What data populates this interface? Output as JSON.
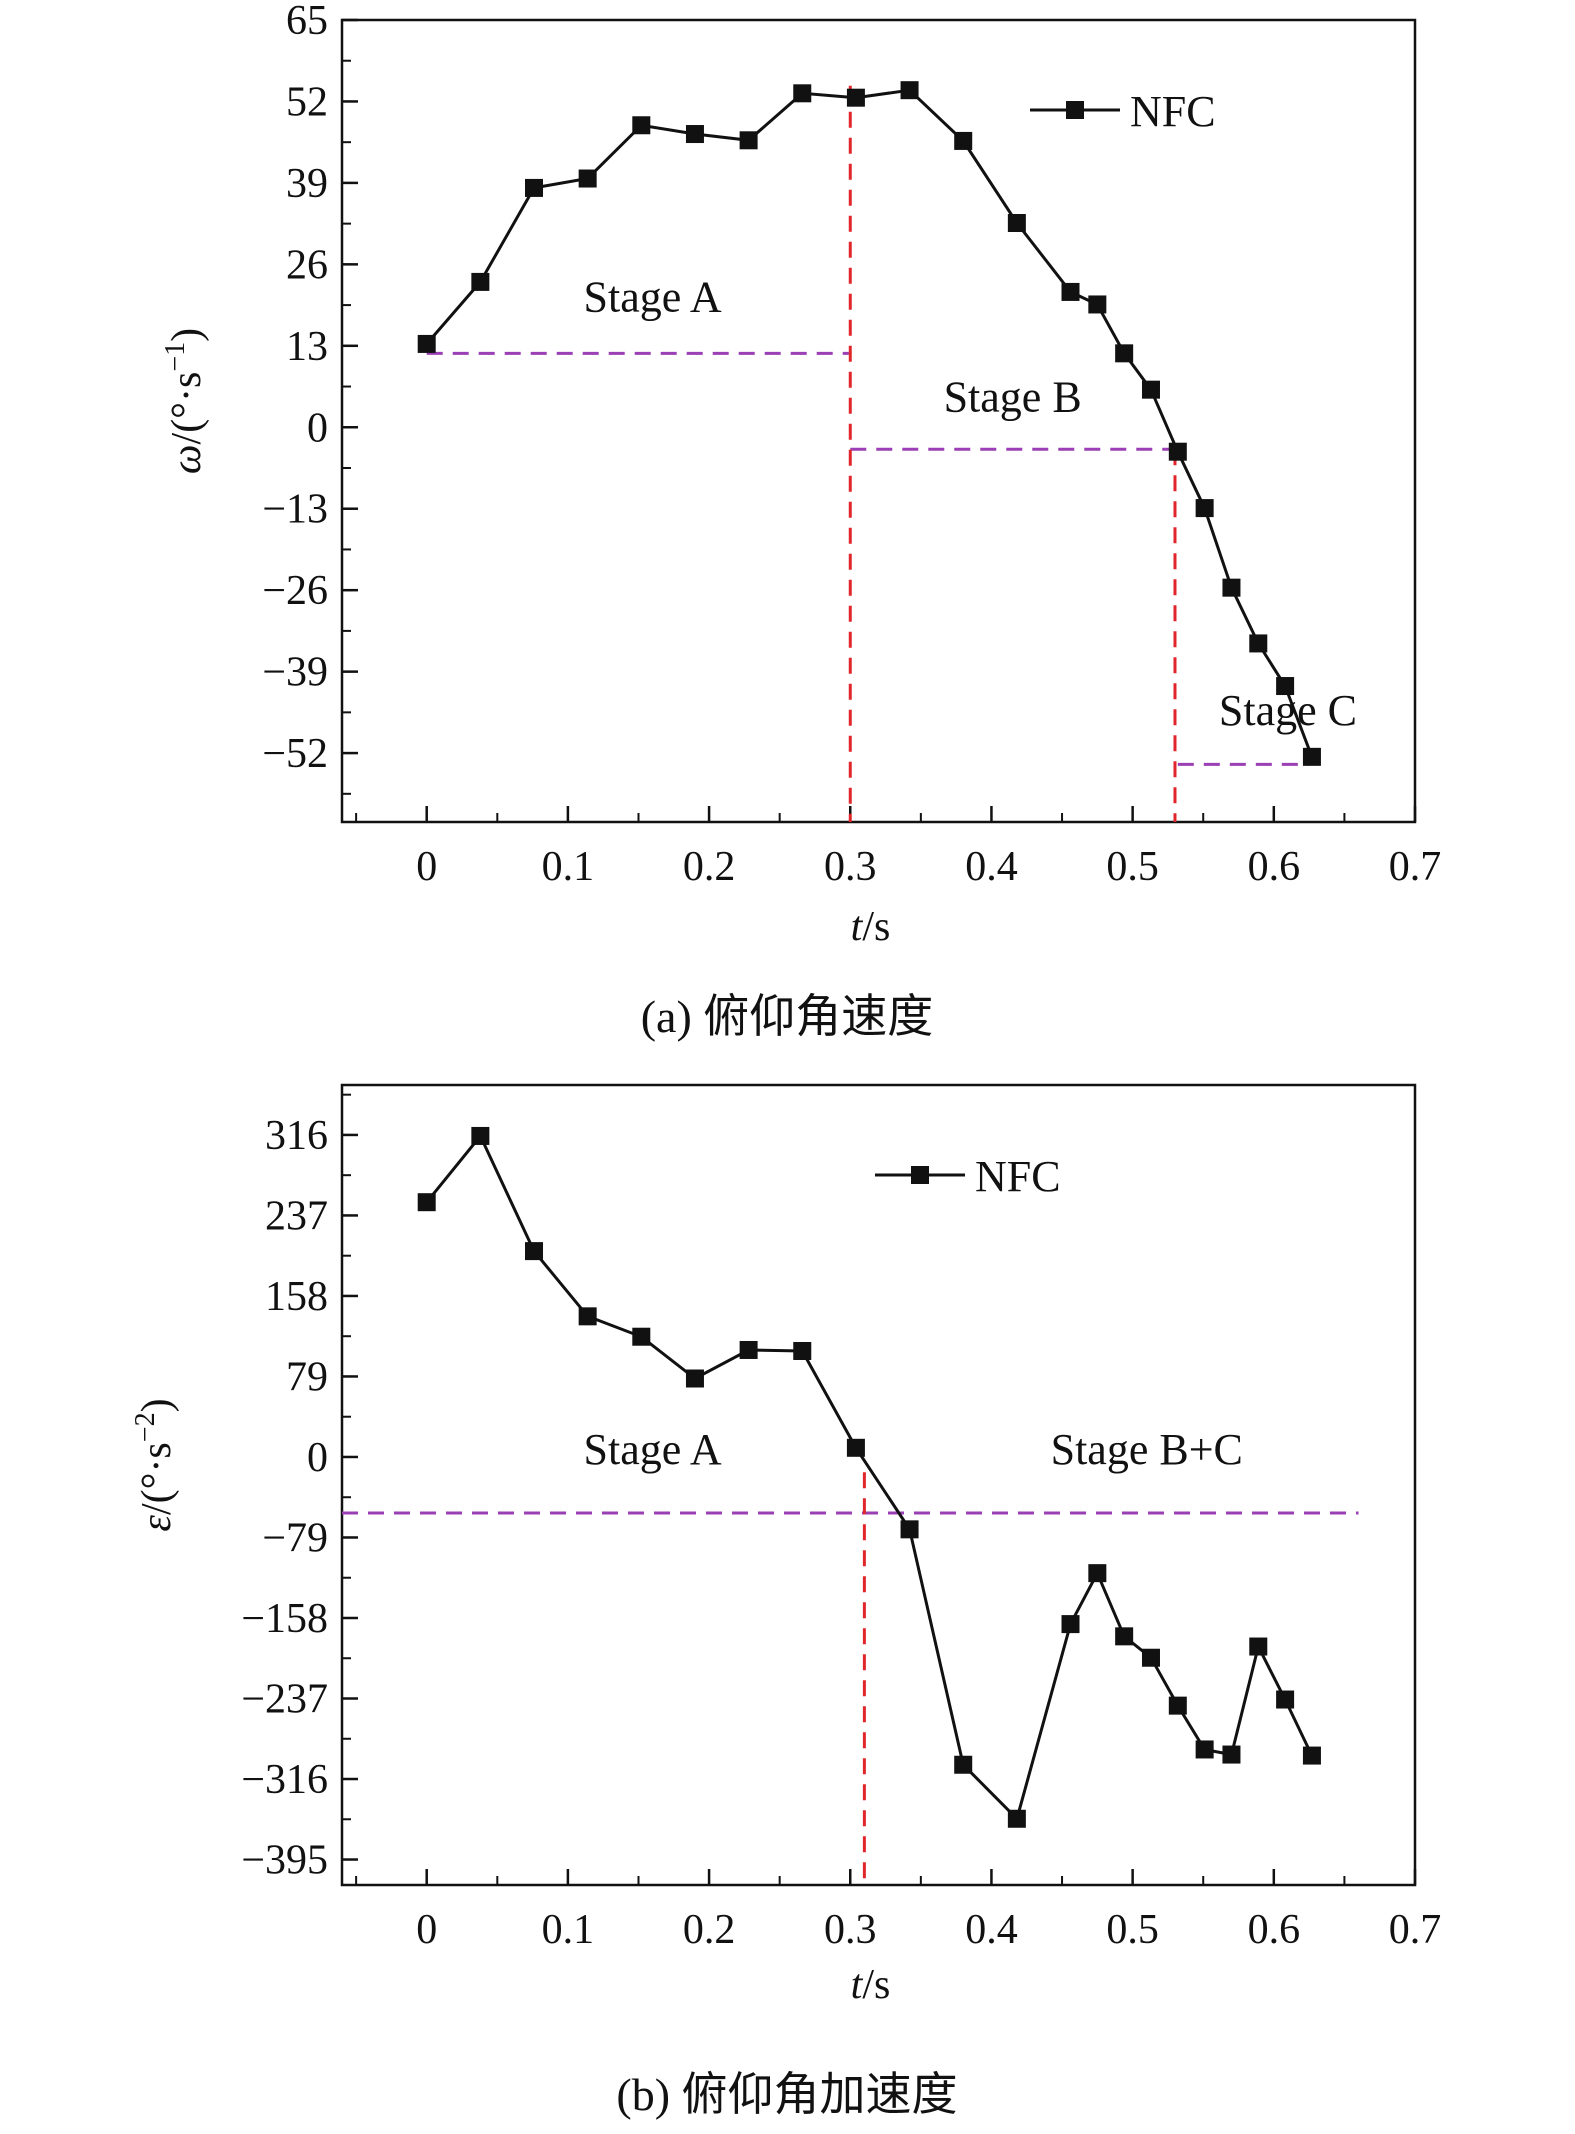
{
  "chart_data": [
    {
      "type": "line",
      "caption": "(a) 俯仰角速度",
      "xlabel_var": "t",
      "xlabel_unit": "/s",
      "ylabel_var": "ω",
      "ylabel_unit": "/(°·s",
      "ylabel_exp": "−1",
      "ylabel_close": ")",
      "xlim": [
        -0.06,
        0.7
      ],
      "ylim": [
        -63,
        65
      ],
      "xticks": [
        0,
        0.1,
        0.2,
        0.3,
        0.4,
        0.5,
        0.6,
        0.7
      ],
      "xtick_labels": [
        "0",
        "0.1",
        "0.2",
        "0.3",
        "0.4",
        "0.5",
        "0.6",
        "0.7"
      ],
      "yticks": [
        65,
        52,
        39,
        26,
        13,
        0,
        -13,
        -26,
        -39,
        -52
      ],
      "ytick_labels": [
        "65",
        "52",
        "39",
        "26",
        "13",
        "0",
        "−13",
        "−26",
        "−39",
        "−52"
      ],
      "legend": [
        "NFC"
      ],
      "series": [
        {
          "name": "NFC",
          "x": [
            0,
            0.038,
            0.076,
            0.114,
            0.152,
            0.19,
            0.228,
            0.266,
            0.304,
            0.342,
            0.38,
            0.418,
            0.456,
            0.475,
            0.494,
            0.513,
            0.532,
            0.551,
            0.57,
            0.589,
            0.608,
            0.627
          ],
          "y": [
            13.3,
            23.2,
            38.2,
            39.7,
            48.2,
            46.8,
            45.8,
            53.3,
            52.6,
            53.8,
            45.7,
            32.6,
            21.6,
            19.6,
            11.8,
            6.0,
            -3.9,
            -12.9,
            -25.6,
            -34.5,
            -41.3,
            -52.6
          ]
        }
      ],
      "annotations": [
        {
          "text": "Stage A",
          "x": 0.16,
          "y": 18.5
        },
        {
          "text": "Stage B",
          "x": 0.415,
          "y": 2.5
        },
        {
          "text": "Stage C",
          "x": 0.61,
          "y": -47.5
        }
      ],
      "purple_segments": [
        {
          "x0": 0.0,
          "x1": 0.299,
          "y": 11.8
        },
        {
          "x0": 0.3,
          "x1": 0.527,
          "y": -3.5
        },
        {
          "x0": 0.532,
          "x1": 0.625,
          "y": -53.8
        }
      ],
      "red_vlines": [
        {
          "x": 0.3,
          "y0": 54.5,
          "y1": -63
        },
        {
          "x": 0.53,
          "y0": -3.5,
          "y1": -63
        }
      ]
    },
    {
      "type": "line",
      "caption": "(b) 俯仰角加速度",
      "xlabel_var": "t",
      "xlabel_unit": "/s",
      "ylabel_var": "ε",
      "ylabel_unit": "/(°·s",
      "ylabel_exp": "−2",
      "ylabel_close": ")",
      "xlim": [
        -0.06,
        0.7
      ],
      "ylim": [
        -420,
        365
      ],
      "xticks": [
        0,
        0.1,
        0.2,
        0.3,
        0.4,
        0.5,
        0.6,
        0.7
      ],
      "xtick_labels": [
        "0",
        "0.1",
        "0.2",
        "0.3",
        "0.4",
        "0.5",
        "0.6",
        "0.7"
      ],
      "yticks": [
        316,
        237,
        158,
        79,
        0,
        -79,
        -158,
        -237,
        -316,
        -395
      ],
      "ytick_labels": [
        "316",
        "237",
        "158",
        "79",
        "0",
        "−79",
        "−158",
        "−237",
        "−316",
        "−395"
      ],
      "legend": [
        "NFC"
      ],
      "series": [
        {
          "name": "NFC",
          "x": [
            0,
            0.038,
            0.076,
            0.114,
            0.152,
            0.19,
            0.228,
            0.266,
            0.304,
            0.342,
            0.38,
            0.418,
            0.456,
            0.475,
            0.494,
            0.513,
            0.532,
            0.551,
            0.57,
            0.589,
            0.608,
            0.627
          ],
          "y": [
            250,
            315,
            202,
            138,
            118,
            77,
            105,
            104,
            9,
            -71,
            -302,
            -355,
            -164,
            -114,
            -176,
            -197,
            -244,
            -287,
            -292,
            -186,
            -238,
            -293
          ]
        }
      ],
      "annotations": [
        {
          "text": "Stage A",
          "x": 0.16,
          "y": -7
        },
        {
          "text": "Stage B+C",
          "x": 0.51,
          "y": -7
        }
      ],
      "purple_segments": [
        {
          "x0": -0.06,
          "x1": 0.66,
          "y": -55
        }
      ],
      "red_vlines": [
        {
          "x": 0.31,
          "y0": -15,
          "y1": -420
        }
      ]
    }
  ]
}
